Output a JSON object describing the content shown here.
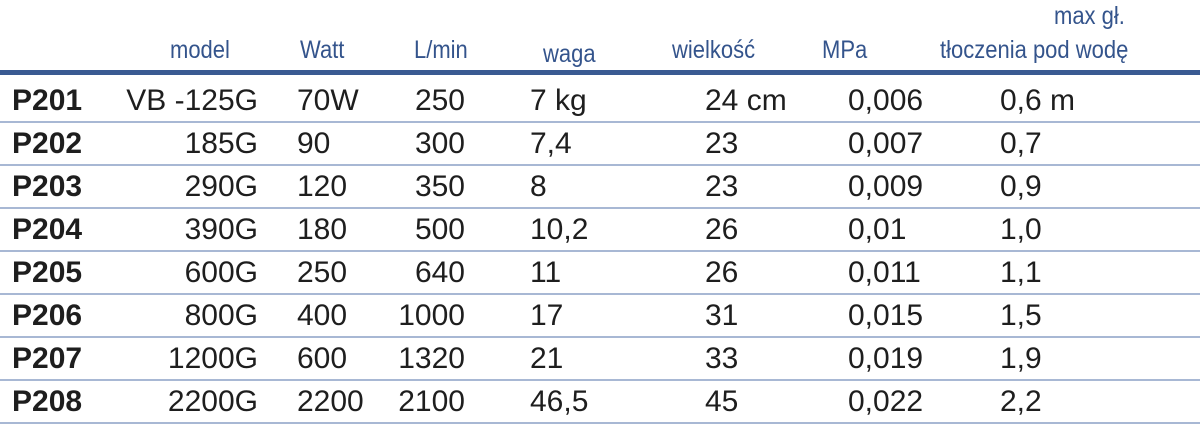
{
  "headers": {
    "model": "model",
    "watt": "Watt",
    "lmin": "L/min",
    "waga": "waga",
    "wielkosc": "wielkość",
    "mpa": "MPa",
    "depth_line1": "max gł.",
    "depth_line2": "tłoczenia pod wodę"
  },
  "colors": {
    "header_text": "#34548c",
    "header_rule": "#3a5a92",
    "row_rule": "#a8b8d4"
  },
  "rows": [
    {
      "code": "P201",
      "model": "VB -125G",
      "watt": "70W",
      "lmin": "250",
      "waga": "7 kg",
      "wielkosc": "24 cm",
      "mpa": "0,006",
      "depth": "0,6 m"
    },
    {
      "code": "P202",
      "model": "185G",
      "watt": "90",
      "lmin": "300",
      "waga": "7,4",
      "wielkosc": "23",
      "mpa": "0,007",
      "depth": "0,7"
    },
    {
      "code": "P203",
      "model": "290G",
      "watt": "120",
      "lmin": "350",
      "waga": "8",
      "wielkosc": "23",
      "mpa": "0,009",
      "depth": "0,9"
    },
    {
      "code": "P204",
      "model": "390G",
      "watt": "180",
      "lmin": "500",
      "waga": "10,2",
      "wielkosc": "26",
      "mpa": "0,01",
      "depth": "1,0"
    },
    {
      "code": "P205",
      "model": "600G",
      "watt": "250",
      "lmin": "640",
      "waga": "11",
      "wielkosc": "26",
      "mpa": "0,011",
      "depth": "1,1"
    },
    {
      "code": "P206",
      "model": "800G",
      "watt": "400",
      "lmin": "1000",
      "waga": "17",
      "wielkosc": "31",
      "mpa": "0,015",
      "depth": "1,5"
    },
    {
      "code": "P207",
      "model": "1200G",
      "watt": "600",
      "lmin": "1320",
      "waga": "21",
      "wielkosc": "33",
      "mpa": "0,019",
      "depth": "1,9"
    },
    {
      "code": "P208",
      "model": "2200G",
      "watt": "2200",
      "lmin": "2100",
      "waga": "46,5",
      "wielkosc": "45",
      "mpa": "0,022",
      "depth": "2,2"
    }
  ]
}
